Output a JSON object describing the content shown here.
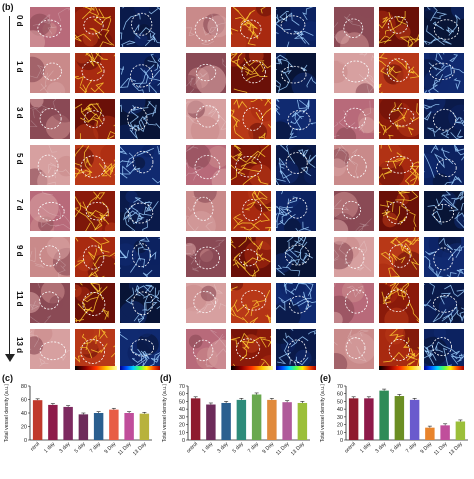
{
  "figure": {
    "panel_b_label": "(b)",
    "day_labels": [
      "0 d",
      "1 d",
      "3 d",
      "5 d",
      "7 d",
      "9 d",
      "11 d",
      "13 d"
    ],
    "groups": [
      "group-1",
      "group-2",
      "group-3"
    ],
    "columns_per_group": [
      "photo",
      "heatmap",
      "vesselmap"
    ]
  },
  "chart_data": [
    {
      "type": "bar",
      "panel": "(c)",
      "categories": [
        "ntrol",
        "1 day",
        "3 day",
        "5 day",
        "7 day",
        "9 Day",
        "11 Day",
        "13 Day"
      ],
      "values": [
        59,
        52,
        49,
        38,
        40,
        45,
        40,
        39
      ],
      "errors": [
        2,
        2,
        2,
        2,
        2,
        2,
        2,
        2
      ],
      "colors": [
        "#c0392b",
        "#8e1b4a",
        "#7d2a60",
        "#6d2b5a",
        "#2b5f8f",
        "#e85d45",
        "#c04e9b",
        "#b8b23c"
      ],
      "ylabel": "Total vessel density (a.u.)",
      "yticks": [
        0,
        20,
        40,
        60,
        80
      ],
      "ylim": [
        0,
        80
      ]
    },
    {
      "type": "bar",
      "panel": "(d)",
      "categories": [
        "ontrol",
        "1 day",
        "3 day",
        "5 day",
        "7 day",
        "9 Day",
        "11 Day",
        "13 Day"
      ],
      "values": [
        54,
        46,
        48,
        52,
        59,
        52,
        49,
        48
      ],
      "errors": [
        2,
        2,
        2,
        2,
        2,
        2,
        2,
        2
      ],
      "colors": [
        "#8e1b2e",
        "#6d2b5a",
        "#2b5f8f",
        "#2e8b7a",
        "#6aa84f",
        "#e08a3c",
        "#b05a9a",
        "#9bbf3a"
      ],
      "ylabel": "Total vessel density (a.u.)",
      "yticks": [
        0,
        10,
        20,
        30,
        40,
        50,
        60,
        70
      ],
      "ylim": [
        0,
        70
      ]
    },
    {
      "type": "bar",
      "panel": "(e)",
      "categories": [
        "ontrol",
        "1 day",
        "3 day",
        "5 day",
        "7 day",
        "9 Day",
        "11 Day",
        "13 Day"
      ],
      "values": [
        54,
        54,
        64,
        57,
        52,
        16,
        19,
        24
      ],
      "errors": [
        2,
        2,
        2,
        2,
        2,
        2,
        2,
        2
      ],
      "colors": [
        "#8e1b2e",
        "#8e1b4a",
        "#2e8b57",
        "#6b8e23",
        "#6a5acd",
        "#e8842c",
        "#c04e9b",
        "#9bbf3a"
      ],
      "ylabel": "Total vessel density (a.u.)",
      "yticks": [
        0,
        10,
        20,
        30,
        40,
        50,
        60,
        70
      ],
      "ylim": [
        0,
        70
      ]
    }
  ]
}
